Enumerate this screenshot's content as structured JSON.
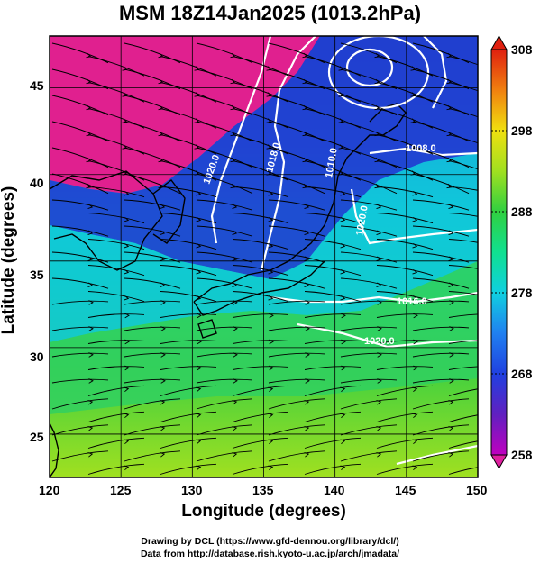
{
  "title": "MSM 18Z14Jan2025 (1013.2hPa)",
  "xlabel": "Longitude (degrees)",
  "ylabel": "Latitude  (degrees)",
  "x_ticks": [
    "120",
    "125",
    "130",
    "135",
    "140",
    "145",
    "150"
  ],
  "y_ticks": [
    "25",
    "30",
    "35",
    "40",
    "45"
  ],
  "colorbar_labels": [
    "308",
    "298",
    "288",
    "278",
    "268",
    "258"
  ],
  "contour_labels": [
    "1020.0",
    "1018.0",
    "1010.0",
    "1008.0",
    "1020.0",
    "1016.0",
    "1020.0"
  ],
  "credits": {
    "line1": "Drawing by DCL (https://www.gfd-dennou.org/library/dcl/)",
    "line2": "Data from http://database.rish.kyoto-u.ac.jp/arch/jmadata/"
  },
  "map": {
    "lon_range": [
      120,
      150
    ],
    "lat_range": [
      22.5,
      48
    ],
    "color_scale": [
      258,
      308
    ],
    "colors": {
      "cold": "#e0208f",
      "cool": "#2030d0",
      "mid": "#10d8c8",
      "warm": "#20d060",
      "hot": "#a0e020",
      "land_outline": "#000000",
      "isobar": "#ffffff",
      "streamline": "#000000"
    }
  }
}
